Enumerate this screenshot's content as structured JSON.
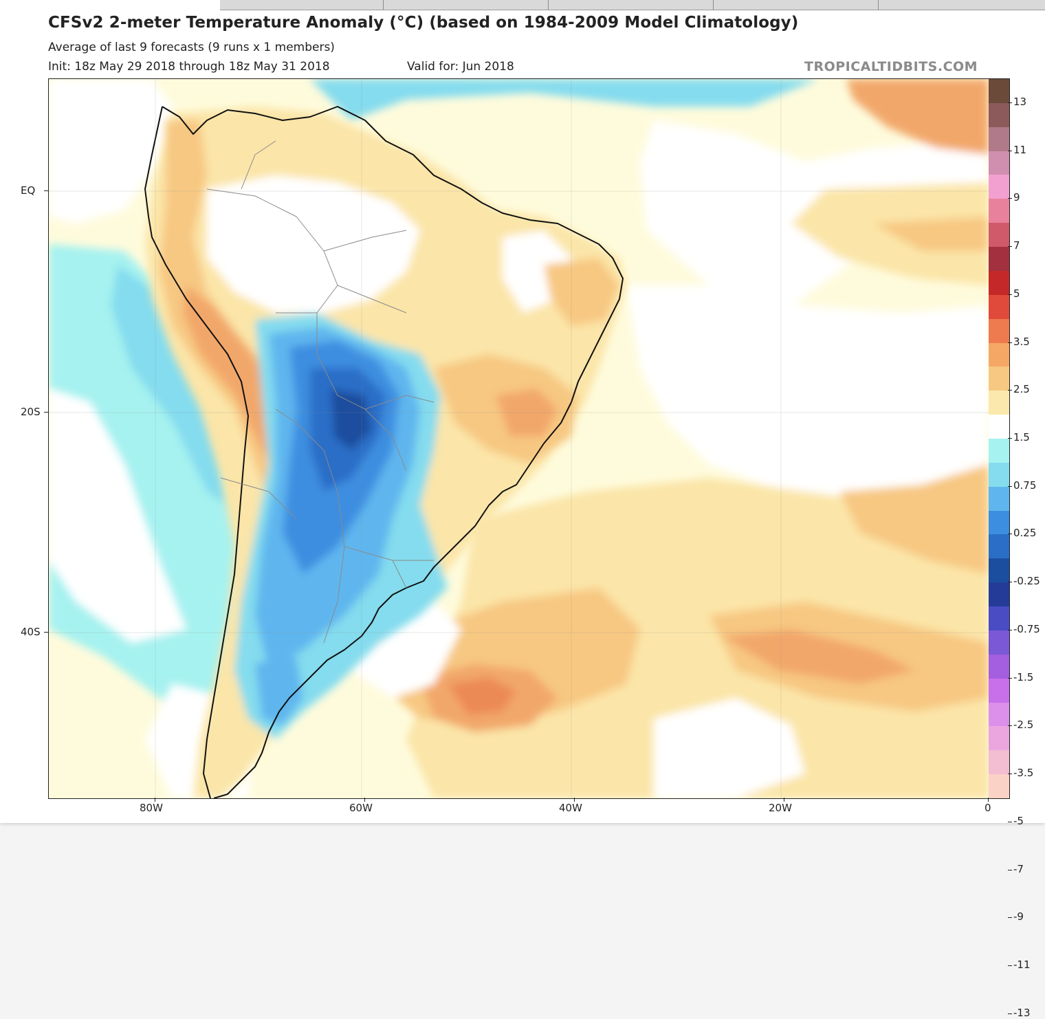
{
  "header": {
    "title": "CFSv2 2-meter Temperature Anomaly (°C) (based on 1984-2009 Model Climatology)",
    "subtitle": "Average of last 9 forecasts (9 runs x 1 members)",
    "init": "Init: 18z May 29 2018 through 18z May 31 2018",
    "valid": "Valid for: Jun 2018",
    "credit": "TROPICALTIDBITS.COM"
  },
  "axes": {
    "lat_labels": [
      "EQ",
      "20S",
      "40S"
    ],
    "lon_labels": [
      "80W",
      "60W",
      "40W",
      "20W",
      "0"
    ]
  },
  "colorbar": {
    "labels": [
      "13",
      "11",
      "9",
      "7",
      "5",
      "3.5",
      "2.5",
      "1.5",
      "0.75",
      "0.25",
      "-0.25",
      "-0.75",
      "-1.5",
      "-2.5",
      "-3.5",
      "-5",
      "-7",
      "-9",
      "-11",
      "-13"
    ],
    "colors": [
      "#6b4a3a",
      "#8c5a5a",
      "#b07a8a",
      "#d08fae",
      "#f2a0d0",
      "#e8829c",
      "#d05a6a",
      "#a2303f",
      "#c42828",
      "#e04a3a",
      "#ee7a50",
      "#f5a865",
      "#f7c882",
      "#fbe8ac",
      "#ffffff",
      "#a6f2f0",
      "#84dcee",
      "#5fb6ee",
      "#3c8ee0",
      "#2a6ec8",
      "#1b4e9e",
      "#243c98",
      "#4a4cc4",
      "#7a58d6",
      "#a45ee0",
      "#c870ea",
      "#dc90ea",
      "#eba6e0",
      "#f3bdd2",
      "#fbd2c6"
    ]
  },
  "map_colors": {
    "ocean_base": "#fefbdc",
    "warm1": "#fbe5a8",
    "warm2": "#f7c882",
    "warm3": "#f2a76a",
    "warm4": "#ec8a55",
    "neutral": "#ffffff",
    "cool1": "#a6f2f0",
    "cool2": "#84dcee",
    "cool3": "#5fb6ee",
    "cool4": "#3c8ee0",
    "cool5": "#2a6ec8",
    "cool6": "#1b4e9e",
    "coast": "#111111",
    "borders": "#8a8a8a"
  }
}
